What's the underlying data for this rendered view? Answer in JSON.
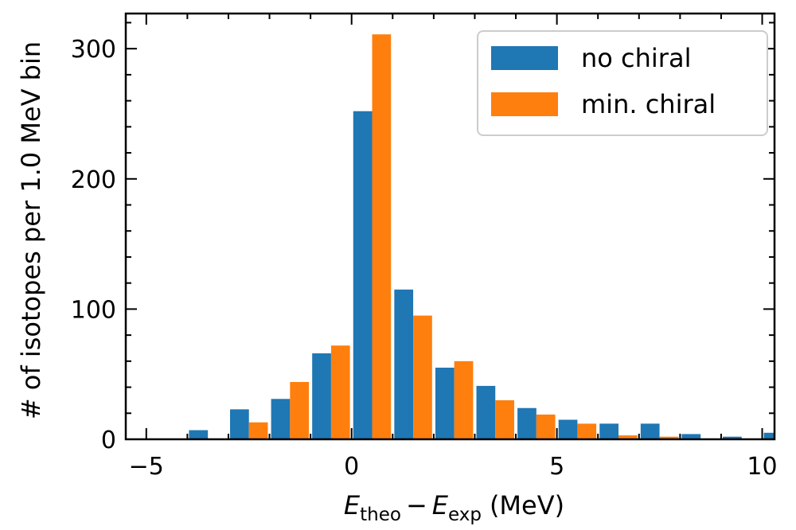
{
  "chart_data": {
    "type": "bar",
    "xlabel_parts": {
      "minuend": "E",
      "minuend_sub": "theo",
      "operator": "−",
      "subtrahend": "E",
      "subtrahend_sub": "exp",
      "unit": "(MeV)"
    },
    "ylabel": "# of isotopes per 1.0 MeV bin",
    "xlim": [
      -5.5,
      10.3
    ],
    "ylim": [
      0,
      327
    ],
    "xticks": [
      -5,
      0,
      5,
      10
    ],
    "yticks": [
      0,
      100,
      200,
      300
    ],
    "xtick_labels": [
      "−5",
      "0",
      "5",
      "10"
    ],
    "ytick_labels": [
      "0",
      "100",
      "200",
      "300"
    ],
    "legend_position": "top-right",
    "bin_width": 1.0,
    "bin_starts": [
      -5,
      -4,
      -3,
      -2,
      -1,
      0,
      1,
      2,
      3,
      4,
      5,
      6,
      7,
      8,
      9
    ],
    "series": [
      {
        "name": "no chiral",
        "color": "#1f77b4",
        "values": [
          0,
          7,
          23,
          31,
          66,
          252,
          115,
          55,
          41,
          24,
          15,
          12,
          12,
          4,
          2
        ]
      },
      {
        "name": "min. chiral",
        "color": "#ff7f0e",
        "values": [
          0,
          0,
          13,
          44,
          72,
          311,
          95,
          60,
          30,
          19,
          12,
          3,
          2,
          0,
          0
        ]
      }
    ],
    "extra_bar": {
      "series": "no chiral",
      "bin_start": 10,
      "value": 5
    }
  }
}
